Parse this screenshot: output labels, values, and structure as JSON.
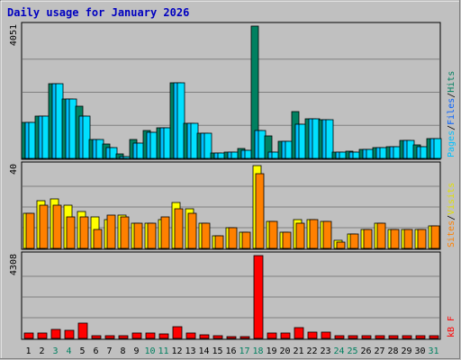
{
  "chart_data": {
    "type": "bar",
    "title": "Daily usage for January 2026",
    "days": [
      1,
      2,
      3,
      4,
      5,
      6,
      7,
      8,
      9,
      10,
      11,
      12,
      13,
      14,
      15,
      16,
      17,
      18,
      19,
      20,
      21,
      22,
      23,
      24,
      25,
      26,
      27,
      28,
      29,
      30,
      31
    ],
    "weekend_days": [
      3,
      4,
      10,
      11,
      17,
      18,
      24,
      25,
      31
    ],
    "panels": [
      {
        "name": "hits-files-pages",
        "ymax": 4051,
        "ymax_label": "4051",
        "side_labels": [
          "Pages",
          "Files",
          "Hits"
        ],
        "series": [
          {
            "name": "Hits",
            "color": "#008060",
            "values": [
              1090,
              1300,
              2300,
              1820,
              1600,
              590,
              430,
              150,
              590,
              850,
              950,
              2310,
              1070,
              780,
              160,
              180,
              300,
              4051,
              680,
              520,
              1430,
              1200,
              1180,
              200,
              230,
              270,
              320,
              350,
              560,
              400,
              600
            ]
          },
          {
            "name": "Files",
            "color": "#00c0ff",
            "values": [
              1090,
              1300,
              2300,
              1820,
              1300,
              590,
              330,
              60,
              480,
              800,
              950,
              2310,
              1070,
              780,
              160,
              180,
              250,
              850,
              180,
              520,
              1060,
              1200,
              1180,
              200,
              200,
              270,
              320,
              350,
              560,
              350,
              600
            ]
          },
          {
            "name": "Pages",
            "color": "#00e0ff",
            "values": [
              1090,
              1300,
              2300,
              1820,
              1300,
              590,
              330,
              60,
              480,
              800,
              950,
              2310,
              1070,
              780,
              160,
              180,
              250,
              850,
              180,
              520,
              1060,
              1200,
              1180,
              200,
              200,
              270,
              320,
              350,
              560,
              350,
              600
            ]
          }
        ]
      },
      {
        "name": "visits-sites",
        "ymax": 40,
        "ymax_label": "40",
        "side_labels": [
          "Sites",
          "Visits"
        ],
        "series": [
          {
            "name": "Visits",
            "color": "#ffff00",
            "values": [
              17,
              23,
              24,
              21,
              18,
              15,
              14,
              16,
              12,
              12,
              14,
              22,
              19,
              12,
              6,
              10,
              8,
              40,
              13,
              8,
              14,
              14,
              13,
              4,
              7,
              9,
              12,
              9,
              9,
              9,
              11
            ]
          },
          {
            "name": "Sites",
            "color": "#ff8000",
            "values": [
              17,
              21,
              21,
              15,
              15,
              9,
              16,
              15,
              12,
              12,
              15,
              19,
              17,
              12,
              6,
              10,
              8,
              36,
              13,
              8,
              12,
              14,
              13,
              3,
              7,
              9,
              12,
              9,
              9,
              9,
              11
            ]
          }
        ]
      },
      {
        "name": "kbf",
        "ymax": 4308,
        "ymax_label": "4308",
        "side_labels": [
          "kB F"
        ],
        "series": [
          {
            "name": "kB F",
            "color": "#ff0000",
            "values": [
              280,
              280,
              450,
              400,
              780,
              160,
              160,
              160,
              300,
              280,
              220,
              620,
              300,
              200,
              150,
              100,
              100,
              4308,
              280,
              300,
              560,
              350,
              350,
              130,
              130,
              130,
              130,
              130,
              130,
              130,
              130
            ]
          }
        ]
      }
    ]
  }
}
